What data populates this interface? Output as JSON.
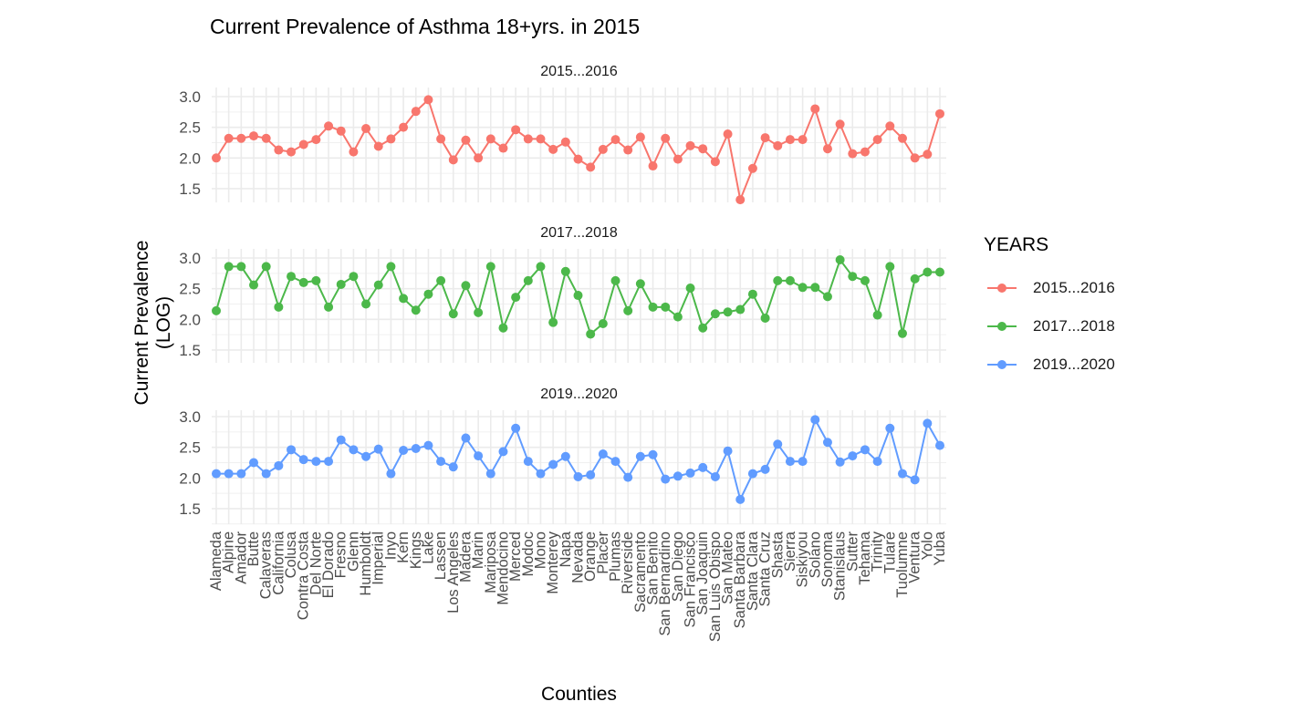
{
  "chart_data": {
    "type": "line",
    "title": "Current Prevalence of Asthma 18+yrs. in 2015",
    "xlabel": "Counties",
    "ylabel": "Current Prevalence (LOG)",
    "ylim": [
      1.25,
      3.1
    ],
    "yticks": [
      1.5,
      2.0,
      2.5,
      3.0
    ],
    "ytick_labels": [
      "1.5",
      "2.0",
      "2.5",
      "3.0"
    ],
    "grid": true,
    "facets": "stacked vertically by YEARS",
    "legend": {
      "title": "YEARS",
      "position": "right"
    },
    "categories": [
      "Alameda",
      "Alpine",
      "Amador",
      "Butte",
      "Calaveras",
      "California",
      "Colusa",
      "Contra Costa",
      "Del Norte",
      "El Dorado",
      "Fresno",
      "Glenn",
      "Humboldt",
      "Imperial",
      "Inyo",
      "Kern",
      "Kings",
      "Lake",
      "Lassen",
      "Los Angeles",
      "Madera",
      "Marin",
      "Mariposa",
      "Mendocino",
      "Merced",
      "Modoc",
      "Mono",
      "Monterey",
      "Napa",
      "Nevada",
      "Orange",
      "Placer",
      "Plumas",
      "Riverside",
      "Sacramento",
      "San Benito",
      "San Bernardino",
      "San Diego",
      "San Francisco",
      "San Joaquin",
      "San Luis Obispo",
      "San Mateo",
      "Santa Barbara",
      "Santa Clara",
      "Santa Cruz",
      "Shasta",
      "Sierra",
      "Siskiyou",
      "Solano",
      "Sonoma",
      "Stanislaus",
      "Sutter",
      "Tehama",
      "Trinity",
      "Tulare",
      "Tuolumne",
      "Ventura",
      "Yolo",
      "Yuba"
    ],
    "series": [
      {
        "name": "2015...2016",
        "color": "#F8766D",
        "values": [
          2.0,
          2.32,
          2.32,
          2.36,
          2.32,
          2.13,
          2.1,
          2.22,
          2.3,
          2.52,
          2.44,
          2.1,
          2.48,
          2.19,
          2.31,
          2.5,
          2.76,
          2.95,
          2.31,
          1.97,
          2.29,
          2.0,
          2.31,
          2.16,
          2.46,
          2.31,
          2.31,
          2.14,
          2.26,
          1.98,
          1.85,
          2.14,
          2.3,
          2.13,
          2.34,
          1.87,
          2.32,
          1.98,
          2.2,
          2.15,
          1.94,
          2.39,
          1.32,
          1.83,
          2.33,
          2.2,
          2.3,
          2.3,
          2.8,
          2.15,
          2.55,
          2.07,
          2.1,
          2.3,
          2.52,
          2.32,
          2.0,
          2.06,
          2.72
        ]
      },
      {
        "name": "2017...2018",
        "color": "#4CB84A",
        "values": [
          2.14,
          2.86,
          2.86,
          2.56,
          2.86,
          2.2,
          2.7,
          2.6,
          2.63,
          2.2,
          2.57,
          2.7,
          2.25,
          2.56,
          2.86,
          2.34,
          2.15,
          2.41,
          2.63,
          2.09,
          2.55,
          2.11,
          2.86,
          1.86,
          2.36,
          2.63,
          2.86,
          1.95,
          2.78,
          2.39,
          1.76,
          1.93,
          2.63,
          2.14,
          2.58,
          2.2,
          2.2,
          2.04,
          2.51,
          1.86,
          2.09,
          2.12,
          2.16,
          2.41,
          2.02,
          2.63,
          2.63,
          2.52,
          2.52,
          2.37,
          2.97,
          2.7,
          2.63,
          2.07,
          2.86,
          1.77,
          2.66,
          2.77,
          2.77
        ]
      },
      {
        "name": "2019...2020",
        "color": "#619CFF",
        "values": [
          2.07,
          2.07,
          2.07,
          2.25,
          2.07,
          2.2,
          2.46,
          2.3,
          2.27,
          2.27,
          2.62,
          2.46,
          2.35,
          2.47,
          2.07,
          2.45,
          2.48,
          2.53,
          2.27,
          2.18,
          2.65,
          2.36,
          2.07,
          2.43,
          2.81,
          2.27,
          2.07,
          2.22,
          2.35,
          2.02,
          2.05,
          2.39,
          2.27,
          2.01,
          2.35,
          2.38,
          1.98,
          2.03,
          2.08,
          2.17,
          2.02,
          2.44,
          1.65,
          2.07,
          2.14,
          2.55,
          2.27,
          2.27,
          2.95,
          2.58,
          2.26,
          2.36,
          2.46,
          2.27,
          2.81,
          2.07,
          1.97,
          2.89,
          2.53
        ]
      }
    ]
  },
  "title": "Current Prevalence of Asthma 18+yrs. in 2015",
  "axes": {
    "xlabel": "Counties",
    "ylabel": "Current Prevalence (LOG)"
  },
  "legend": {
    "title": "YEARS",
    "items": [
      {
        "label": "2015...2016",
        "color": "#F8766D"
      },
      {
        "label": "2017...2018",
        "color": "#4CB84A"
      },
      {
        "label": "2019...2020",
        "color": "#619CFF"
      }
    ]
  },
  "panels": [
    {
      "strip": "2015...2016"
    },
    {
      "strip": "2017...2018"
    },
    {
      "strip": "2019...2020"
    }
  ]
}
